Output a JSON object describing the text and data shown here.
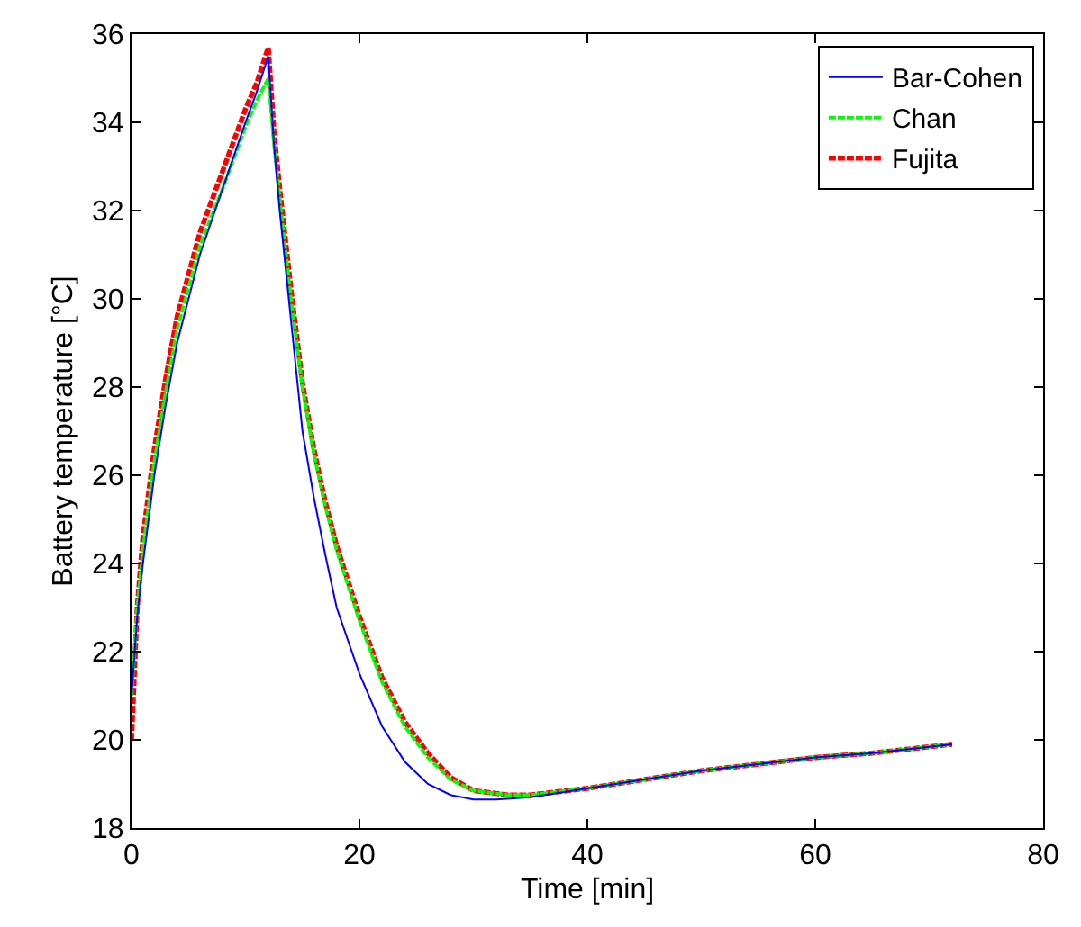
{
  "chart_data": {
    "type": "line",
    "xlabel": "Time [min]",
    "ylabel": "Battery temperature [°C]",
    "xlim": [
      0,
      80
    ],
    "xticks": [
      0,
      20,
      40,
      60,
      80
    ],
    "ylim": [
      18,
      36
    ],
    "yticks": [
      18,
      20,
      22,
      24,
      26,
      28,
      30,
      32,
      34,
      36
    ],
    "legend": "top right",
    "marker": "none",
    "series": [
      {
        "name": "Bar-Cohen",
        "color": "#0000ff",
        "line_style": "solid",
        "x": [
          0,
          0.5,
          1,
          2,
          3,
          4,
          6,
          8,
          10,
          11,
          12,
          12.5,
          13,
          14,
          15,
          16,
          17,
          18,
          20,
          22,
          24,
          26,
          28,
          30,
          32,
          35,
          40,
          45,
          50,
          55,
          60,
          65,
          72
        ],
        "values": [
          21,
          22.8,
          24,
          26,
          27.6,
          29,
          31,
          32.5,
          34,
          34.7,
          35.5,
          33.5,
          32,
          29.5,
          27,
          25.5,
          24.2,
          23,
          21.5,
          20.3,
          19.5,
          19,
          18.75,
          18.65,
          18.65,
          18.7,
          18.9,
          19.1,
          19.3,
          19.45,
          19.6,
          19.7,
          19.9
        ]
      },
      {
        "name": "Chan",
        "color": "#00ff00",
        "line_style": "dashed",
        "x": [
          0,
          0.5,
          1,
          2,
          3,
          4,
          6,
          8,
          10,
          11,
          12,
          12.5,
          13,
          14,
          15,
          16,
          17,
          18,
          20,
          22,
          24,
          26,
          28,
          30,
          33,
          35,
          40,
          45,
          50,
          55,
          60,
          65,
          72
        ],
        "values": [
          21,
          23,
          24.3,
          26.3,
          27.9,
          29.3,
          31.2,
          32.5,
          33.9,
          34.5,
          35.0,
          33.5,
          32.3,
          30,
          28,
          26.5,
          25.3,
          24.3,
          22.7,
          21.3,
          20.3,
          19.6,
          19.1,
          18.85,
          18.75,
          18.75,
          18.9,
          19.1,
          19.3,
          19.45,
          19.6,
          19.7,
          19.9
        ]
      },
      {
        "name": "Fujita",
        "color": "#ff0000",
        "line_style": "dashed",
        "x": [
          0,
          0.5,
          1,
          2,
          3,
          4,
          6,
          8,
          10,
          11,
          12,
          12.5,
          13,
          14,
          15,
          16,
          17,
          18,
          20,
          22,
          24,
          26,
          28,
          30,
          33,
          35,
          40,
          45,
          50,
          55,
          60,
          65,
          72
        ],
        "values": [
          20,
          23,
          24.6,
          26.6,
          28.2,
          29.6,
          31.5,
          32.9,
          34.3,
          34.9,
          35.7,
          33.8,
          32.5,
          30.2,
          28.1,
          26.6,
          25.4,
          24.4,
          22.8,
          21.4,
          20.4,
          19.7,
          19.15,
          18.85,
          18.75,
          18.75,
          18.9,
          19.1,
          19.3,
          19.45,
          19.6,
          19.7,
          19.9
        ]
      }
    ]
  }
}
